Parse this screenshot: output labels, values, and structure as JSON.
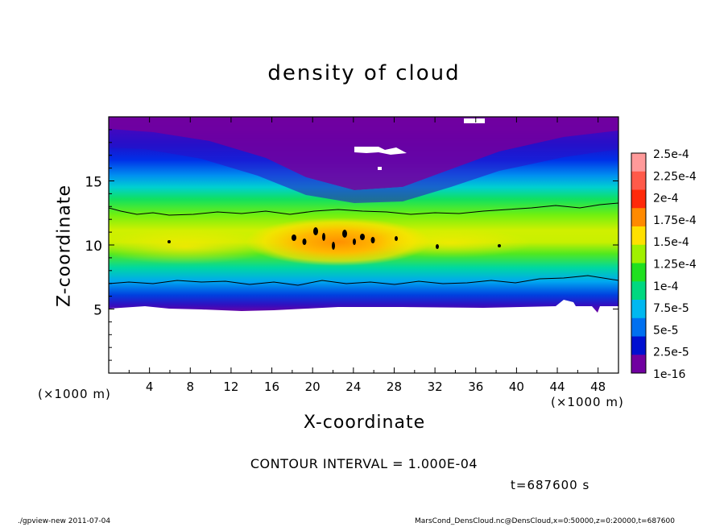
{
  "chart_data": {
    "type": "heatmap",
    "title": "density of cloud",
    "xlabel": "X-coordinate",
    "ylabel": "Z-coordinate",
    "x_unit_label": "(×1000 m)",
    "xlim": [
      0,
      50
    ],
    "ylim": [
      0,
      20
    ],
    "x_ticks": [
      4,
      8,
      12,
      16,
      20,
      24,
      28,
      32,
      36,
      40,
      44,
      48
    ],
    "y_ticks": [
      5,
      10,
      15
    ],
    "colorbar": {
      "labels": [
        "2.5e-4",
        "2.25e-4",
        "2e-4",
        "1.75e-4",
        "1.5e-4",
        "1.25e-4",
        "1e-4",
        "7.5e-5",
        "5e-5",
        "2.5e-5",
        "1e-16"
      ],
      "colors": [
        "#ff9a9a",
        "#ff5a4a",
        "#ff2a0a",
        "#ff8a00",
        "#ffe000",
        "#a0f000",
        "#20e020",
        "#00d880",
        "#00b8f0",
        "#0070f0",
        "#0010d0",
        "#7000a0"
      ]
    },
    "contour_interval_text": "CONTOUR INTERVAL = 1.000E-04",
    "contour_levels": [
      0.0001,
      0.0002
    ],
    "time_label": "t=687600 s",
    "summary": "Cloud density maximal (~2e-4) near z=10-11 km, x=17-27 km; cloud band from z≈5 to z≈19 km; no cloud below z≈5 km."
  },
  "footer": {
    "left": "./gpview-new  2011-07-04",
    "right": "MarsCond_DensCloud.nc@DensCloud,x=0:50000,z=0:20000,t=687600"
  }
}
